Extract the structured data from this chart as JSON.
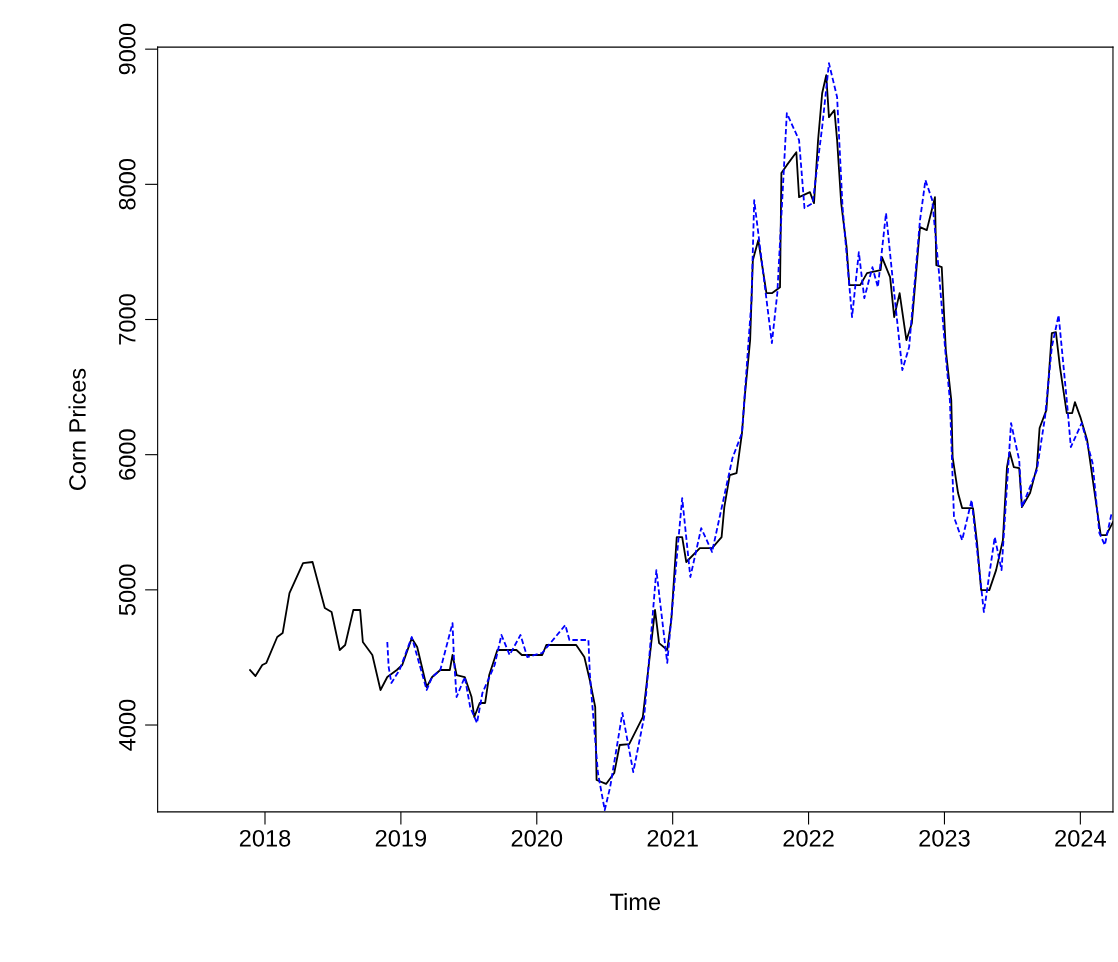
{
  "chart_data": {
    "type": "line",
    "xlabel": "Time",
    "ylabel": "Corn Prices",
    "xlim": [
      2017.21,
      2024.24
    ],
    "xticks": [
      2018,
      2019,
      2020,
      2021,
      2022,
      2023,
      2024
    ],
    "ylim": [
      3357,
      9015
    ],
    "yticks": [
      4000,
      5000,
      6000,
      7000,
      8000,
      9000
    ],
    "grid": false,
    "legend": false,
    "marker": "none",
    "series": [
      {
        "color": "#000000",
        "line_style": "solid",
        "x": [
          2017.89,
          2017.93,
          2017.98,
          2018.01,
          2018.09,
          2018.13,
          2018.18,
          2018.28,
          2018.35,
          2018.44,
          2018.49,
          2018.55,
          2018.59,
          2018.65,
          2018.7,
          2018.72,
          2018.79,
          2018.85,
          2018.9,
          2018.97,
          2019.01,
          2019.08,
          2019.12,
          2019.19,
          2019.23,
          2019.29,
          2019.36,
          2019.38,
          2019.41,
          2019.47,
          2019.52,
          2019.54,
          2019.58,
          2019.62,
          2019.65,
          2019.71,
          2019.85,
          2019.89,
          2020.04,
          2020.07,
          2020.29,
          2020.35,
          2020.39,
          2020.43,
          2020.44,
          2020.51,
          2020.57,
          2020.61,
          2020.68,
          2020.78,
          2020.82,
          2020.87,
          2020.9,
          2020.96,
          2020.99,
          2021.03,
          2021.07,
          2021.1,
          2021.2,
          2021.29,
          2021.36,
          2021.38,
          2021.42,
          2021.47,
          2021.51,
          2021.53,
          2021.57,
          2021.59,
          2021.63,
          2021.69,
          2021.73,
          2021.79,
          2021.8,
          2021.84,
          2021.91,
          2021.93,
          2022.01,
          2022.04,
          2022.07,
          2022.1,
          2022.13,
          2022.15,
          2022.19,
          2022.21,
          2022.24,
          2022.28,
          2022.3,
          2022.38,
          2022.43,
          2022.53,
          2022.54,
          2022.6,
          2022.63,
          2022.67,
          2022.72,
          2022.76,
          2022.82,
          2022.87,
          2022.93,
          2022.94,
          2022.98,
          2023.01,
          2023.05,
          2023.06,
          2023.1,
          2023.13,
          2023.21,
          2023.24,
          2023.27,
          2023.33,
          2023.38,
          2023.43,
          2023.46,
          2023.48,
          2023.51,
          2023.55,
          2023.57,
          2023.63,
          2023.68,
          2023.7,
          2023.75,
          2023.79,
          2023.82,
          2023.85,
          2023.9,
          2023.94,
          2023.96,
          2024.0,
          2024.05,
          2024.12,
          2024.15,
          2024.19,
          2024.24
        ],
        "values": [
          4407,
          4362,
          4444,
          4459,
          4651,
          4680,
          4976,
          5198,
          5206,
          4865,
          4836,
          4555,
          4592,
          4851,
          4851,
          4614,
          4518,
          4259,
          4355,
          4407,
          4444,
          4643,
          4577,
          4281,
          4355,
          4407,
          4407,
          4518,
          4370,
          4355,
          4207,
          4059,
          4163,
          4163,
          4370,
          4555,
          4555,
          4518,
          4518,
          4592,
          4592,
          4503,
          4333,
          4133,
          3593,
          3564,
          3645,
          3852,
          3859,
          4059,
          4407,
          4851,
          4606,
          4555,
          4777,
          5390,
          5390,
          5206,
          5309,
          5309,
          5390,
          5612,
          5849,
          5864,
          6160,
          6426,
          6847,
          7439,
          7587,
          7195,
          7195,
          7239,
          8083,
          8142,
          8238,
          7905,
          7942,
          7861,
          8327,
          8674,
          8807,
          8497,
          8549,
          8327,
          7861,
          7535,
          7254,
          7254,
          7343,
          7365,
          7461,
          7313,
          7018,
          7195,
          6847,
          6973,
          7683,
          7661,
          7905,
          7402,
          7387,
          6774,
          6404,
          5982,
          5716,
          5605,
          5605,
          5346,
          4998,
          4998,
          5146,
          5368,
          5908,
          6019,
          5908,
          5901,
          5612,
          5716,
          5908,
          6197,
          6330,
          6899,
          6907,
          6648,
          6308,
          6308,
          6389,
          6278,
          6108,
          5612,
          5405,
          5405,
          5501
        ]
      },
      {
        "color": "#0000ff",
        "line_style": "dashed",
        "x": [
          2018.9,
          2018.91,
          2018.93,
          2018.99,
          2019.08,
          2019.19,
          2019.23,
          2019.29,
          2019.38,
          2019.39,
          2019.41,
          2019.47,
          2019.51,
          2019.56,
          2019.6,
          2019.69,
          2019.74,
          2019.8,
          2019.88,
          2019.93,
          2020.04,
          2020.21,
          2020.24,
          2020.38,
          2020.39,
          2020.41,
          2020.45,
          2020.5,
          2020.54,
          2020.63,
          2020.71,
          2020.79,
          2020.82,
          2020.88,
          2020.96,
          2021.07,
          2021.13,
          2021.21,
          2021.29,
          2021.4,
          2021.44,
          2021.51,
          2021.58,
          2021.6,
          2021.73,
          2021.77,
          2021.84,
          2021.93,
          2021.97,
          2022.03,
          2022.1,
          2022.15,
          2022.21,
          2022.25,
          2022.32,
          2022.37,
          2022.41,
          2022.47,
          2022.51,
          2022.57,
          2022.61,
          2022.69,
          2022.74,
          2022.82,
          2022.86,
          2022.91,
          2022.96,
          2023.01,
          2023.04,
          2023.07,
          2023.13,
          2023.2,
          2023.29,
          2023.37,
          2023.42,
          2023.49,
          2023.55,
          2023.57,
          2023.68,
          2023.74,
          2023.79,
          2023.84,
          2023.9,
          2023.93,
          2024.01,
          2024.09,
          2024.14,
          2024.18,
          2024.23
        ],
        "values": [
          4614,
          4429,
          4311,
          4407,
          4651,
          4259,
          4355,
          4407,
          4754,
          4503,
          4207,
          4355,
          4133,
          4015,
          4237,
          4444,
          4666,
          4518,
          4666,
          4503,
          4533,
          4740,
          4629,
          4629,
          4385,
          4133,
          3645,
          3371,
          3541,
          4089,
          3652,
          4059,
          4407,
          5146,
          4459,
          5679,
          5095,
          5457,
          5280,
          5790,
          5975,
          6160,
          7143,
          7883,
          6825,
          7195,
          8526,
          8327,
          7824,
          7861,
          8423,
          8896,
          8645,
          7831,
          7018,
          7498,
          7158,
          7387,
          7239,
          7787,
          7387,
          6626,
          6796,
          7735,
          8031,
          7883,
          7343,
          6722,
          6404,
          5538,
          5368,
          5664,
          4836,
          5390,
          5146,
          6234,
          5960,
          5612,
          5886,
          6278,
          6796,
          7032,
          6404,
          6056,
          6234,
          5938,
          5420,
          5331,
          5568
        ]
      }
    ]
  }
}
